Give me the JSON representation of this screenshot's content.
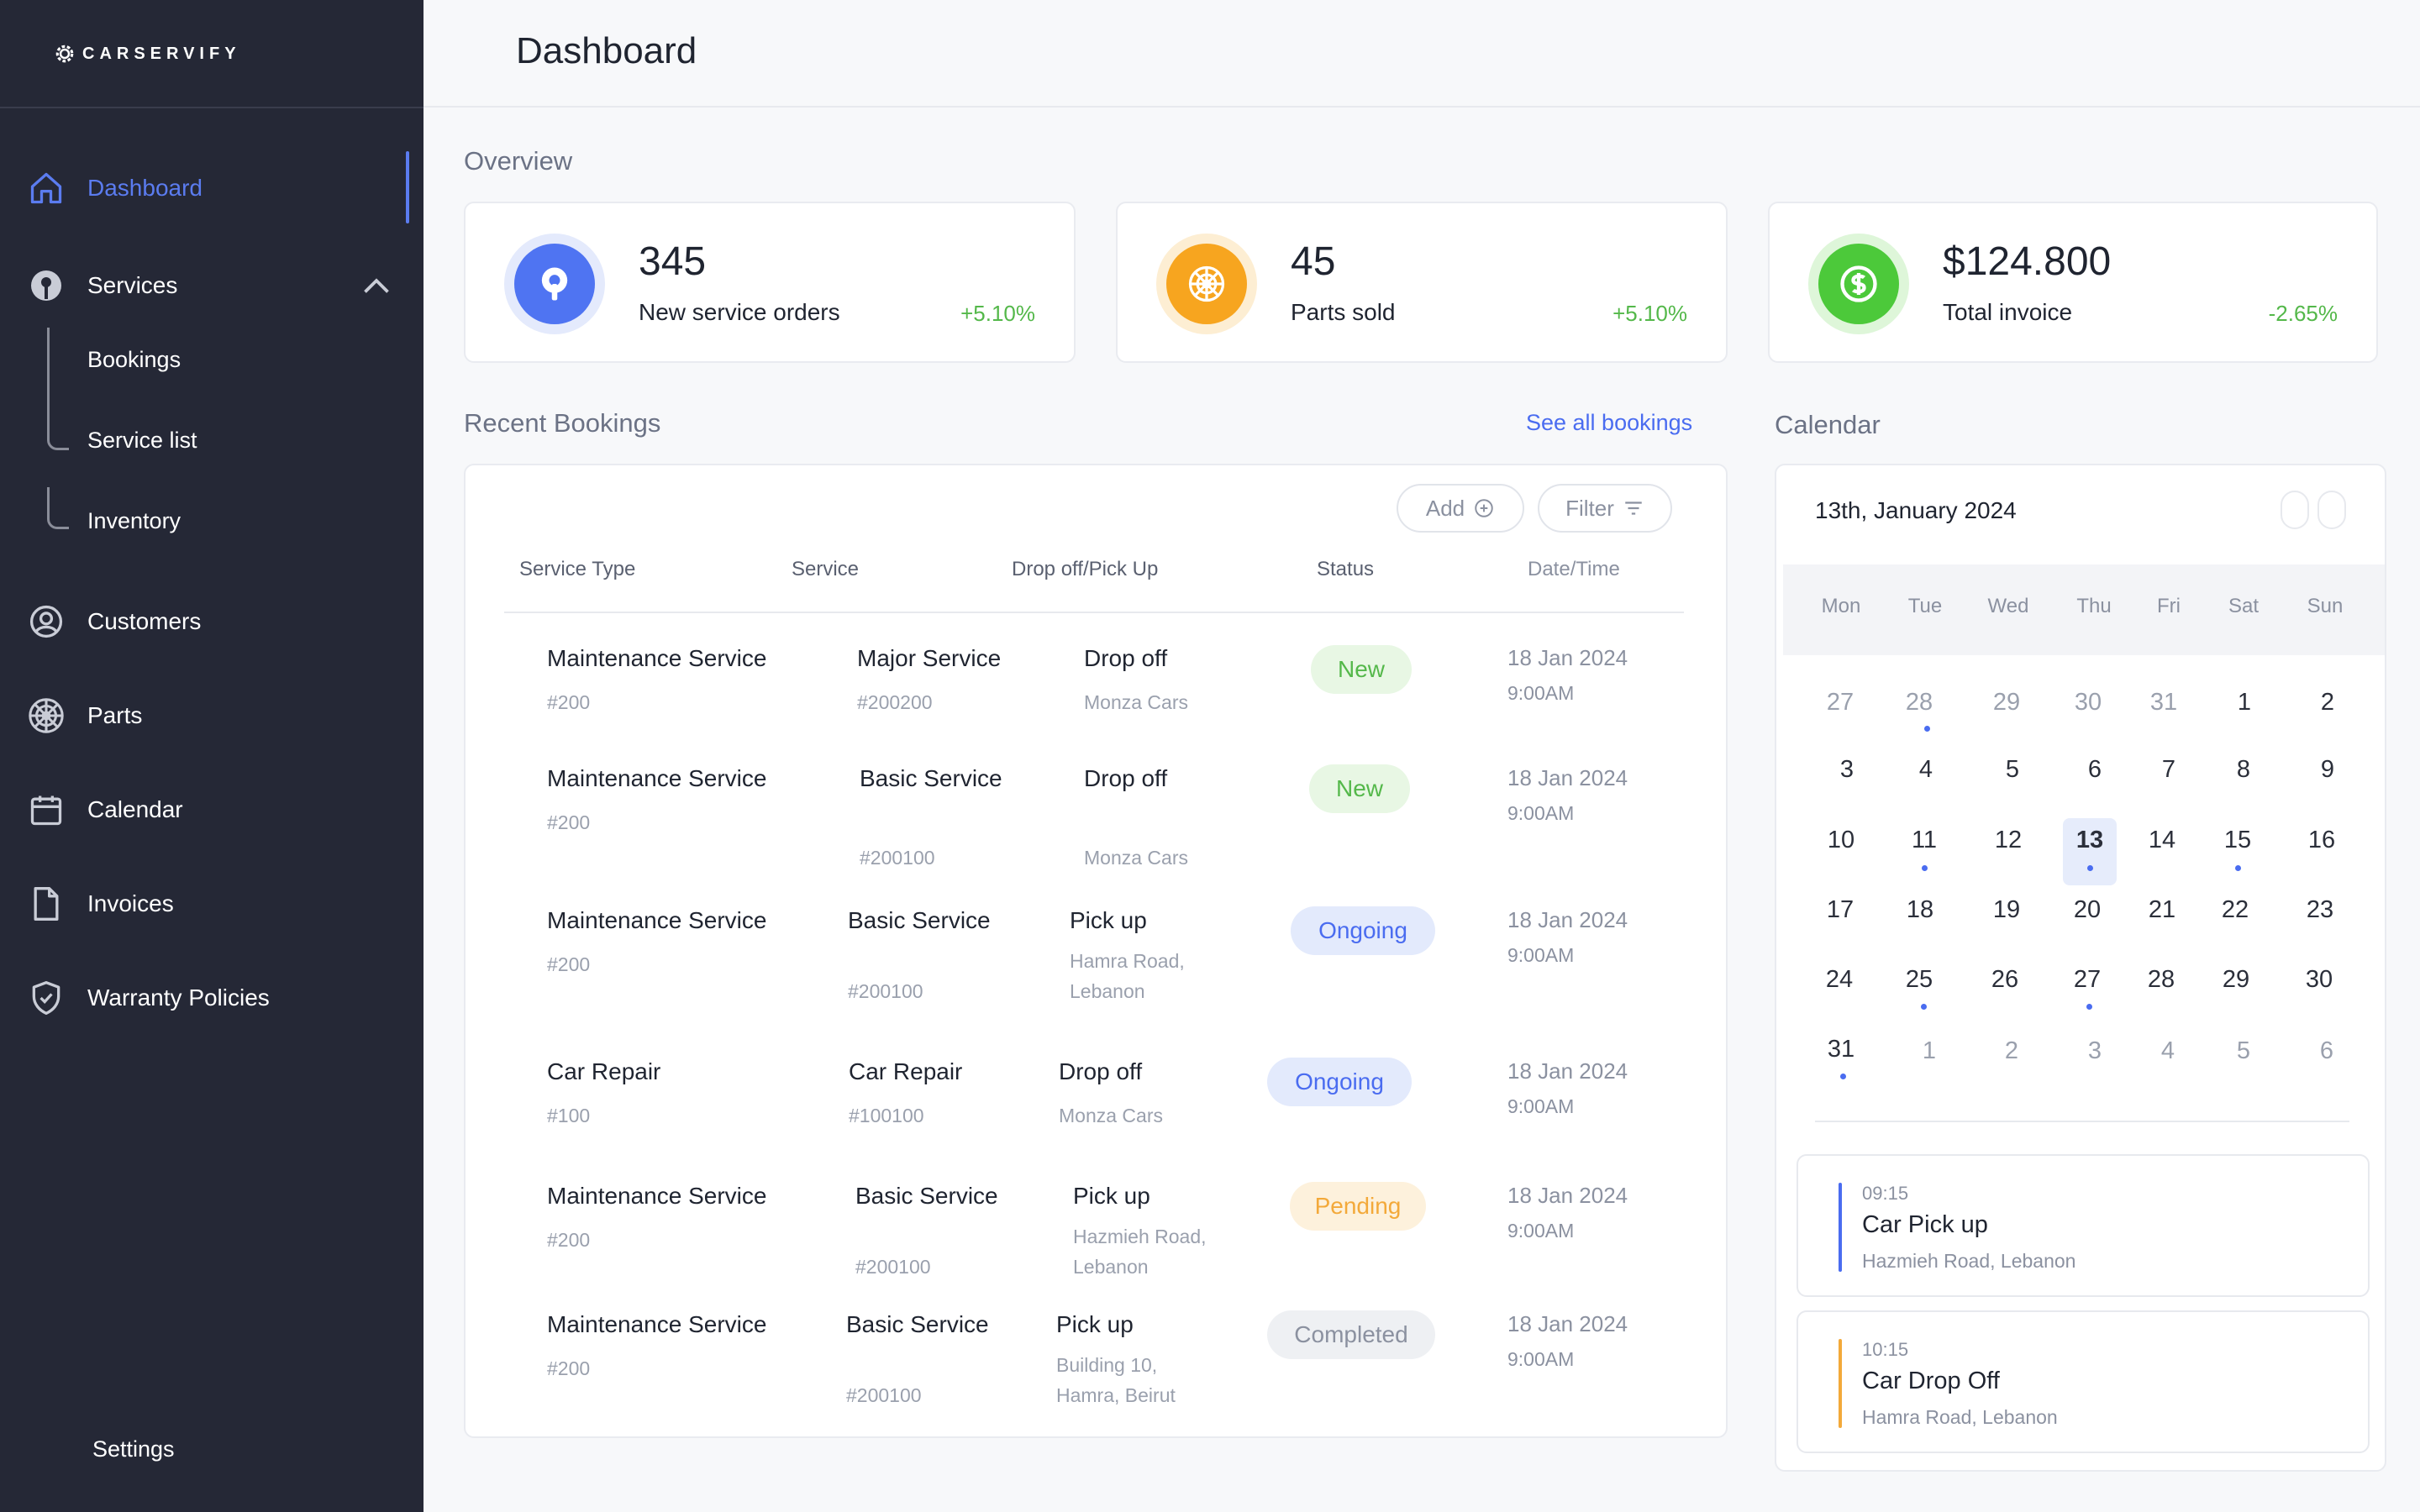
{
  "app": {
    "brand": "CARSERVIFY"
  },
  "header": {
    "title": "Dashboard"
  },
  "sidebar": {
    "items": [
      {
        "label": "Dashboard",
        "icon": "home-icon",
        "active": true
      },
      {
        "label": "Services",
        "icon": "gear-wrench-icon",
        "expanded": true
      },
      {
        "label": "Customers",
        "icon": "user-circle-icon"
      },
      {
        "label": "Parts",
        "icon": "wheel-icon"
      },
      {
        "label": "Calendar",
        "icon": "calendar-icon"
      },
      {
        "label": "Invoices",
        "icon": "document-icon"
      },
      {
        "label": "Warranty Policies",
        "icon": "shield-check-icon"
      }
    ],
    "services_children": [
      "Bookings",
      "Service list",
      "Inventory"
    ],
    "settings_label": "Settings",
    "accent": "#5b7cf0"
  },
  "overview": {
    "title": "Overview",
    "cards": [
      {
        "value": "345",
        "label": "New service orders",
        "delta": "+5.10%",
        "delta_color": "#54b84a",
        "icon": "service-icon",
        "color": "#4f74f2"
      },
      {
        "value": "45",
        "label": "Parts sold",
        "delta": "+5.10%",
        "delta_color": "#54b84a",
        "icon": "wheel-icon",
        "color": "#f7a51f"
      },
      {
        "value": "$124.800",
        "label": "Total invoice",
        "delta": "-2.65%",
        "delta_color": "#54b84a",
        "icon": "dollar-icon",
        "color": "#4cc93a"
      }
    ]
  },
  "bookings": {
    "title": "Recent Bookings",
    "see_all": "See all bookings",
    "add_label": "Add",
    "filter_label": "Filter",
    "columns": [
      "Service Type",
      "Service",
      "Drop off/Pick Up",
      "Status",
      "Date/Time"
    ],
    "rows": [
      {
        "type": "Maintenance Service",
        "type_id": "#200",
        "service": "Major Service",
        "service_id": "#200200",
        "mode": "Drop off",
        "loc1": "Monza Cars",
        "loc2": "",
        "status": "New",
        "date": "18 Jan 2024",
        "time": "9:00AM"
      },
      {
        "type": "Maintenance Service",
        "type_id": "#200",
        "service": "Basic Service",
        "service_id": "#200100",
        "mode": "Drop off",
        "loc1": "Monza Cars",
        "loc2": "",
        "status": "New",
        "date": "18 Jan 2024",
        "time": "9:00AM"
      },
      {
        "type": "Maintenance Service",
        "type_id": "#200",
        "service": "Basic Service",
        "service_id": "#200100",
        "mode": "Pick up",
        "loc1": "Hamra Road,",
        "loc2": "Lebanon",
        "status": "Ongoing",
        "date": "18 Jan 2024",
        "time": "9:00AM"
      },
      {
        "type": "Car Repair",
        "type_id": "#100",
        "service": "Car Repair",
        "service_id": "#100100",
        "mode": "Drop off",
        "loc1": "Monza Cars",
        "loc2": "",
        "status": "Ongoing",
        "date": "18 Jan 2024",
        "time": "9:00AM"
      },
      {
        "type": "Maintenance Service",
        "type_id": "#200",
        "service": "Basic Service",
        "service_id": "#200100",
        "mode": "Pick up",
        "loc1": "Hazmieh Road,",
        "loc2": "Lebanon",
        "status": "Pending",
        "date": "18 Jan 2024",
        "time": "9:00AM"
      },
      {
        "type": "Maintenance Service",
        "type_id": "#200",
        "service": "Basic Service",
        "service_id": "#200100",
        "mode": "Pick up",
        "loc1": "Building 10,",
        "loc2": "Hamra, Beirut",
        "status": "Completed",
        "date": "18 Jan 2024",
        "time": "9:00AM"
      }
    ],
    "status_colors": {
      "New": {
        "bg": "#e8f7e4",
        "fg": "#54b84a"
      },
      "Ongoing": {
        "bg": "#e3eafc",
        "fg": "#4a6cf0"
      },
      "Pending": {
        "bg": "#fdf1dc",
        "fg": "#f3a93a"
      },
      "Completed": {
        "bg": "#eef0f3",
        "fg": "#8b91a0"
      }
    }
  },
  "calendar": {
    "title": "Calendar",
    "selected_label": "13th, January 2024",
    "weekdays": [
      "Mon",
      "Tue",
      "Wed",
      "Thu",
      "Fri",
      "Sat",
      "Sun"
    ],
    "weeks": [
      [
        "27",
        "28",
        "29",
        "30",
        "31",
        "1",
        "2"
      ],
      [
        "3",
        "4",
        "5",
        "6",
        "7",
        "8",
        "9"
      ],
      [
        "10",
        "11",
        "12",
        "13",
        "14",
        "15",
        "16"
      ],
      [
        "17",
        "18",
        "19",
        "20",
        "21",
        "22",
        "23"
      ],
      [
        "24",
        "25",
        "26",
        "27",
        "28",
        "29",
        "30"
      ],
      [
        "31",
        "1",
        "2",
        "3",
        "4",
        "5",
        "6"
      ]
    ],
    "today": "13",
    "events": [
      {
        "time": "09:15",
        "title": "Car Pick up",
        "location": "Hazmieh Road, Lebanon",
        "color": "#4a6cf0"
      },
      {
        "time": "10:15",
        "title": "Car Drop Off",
        "location": "Hamra Road, Lebanon",
        "color": "#f3a93a"
      }
    ]
  }
}
